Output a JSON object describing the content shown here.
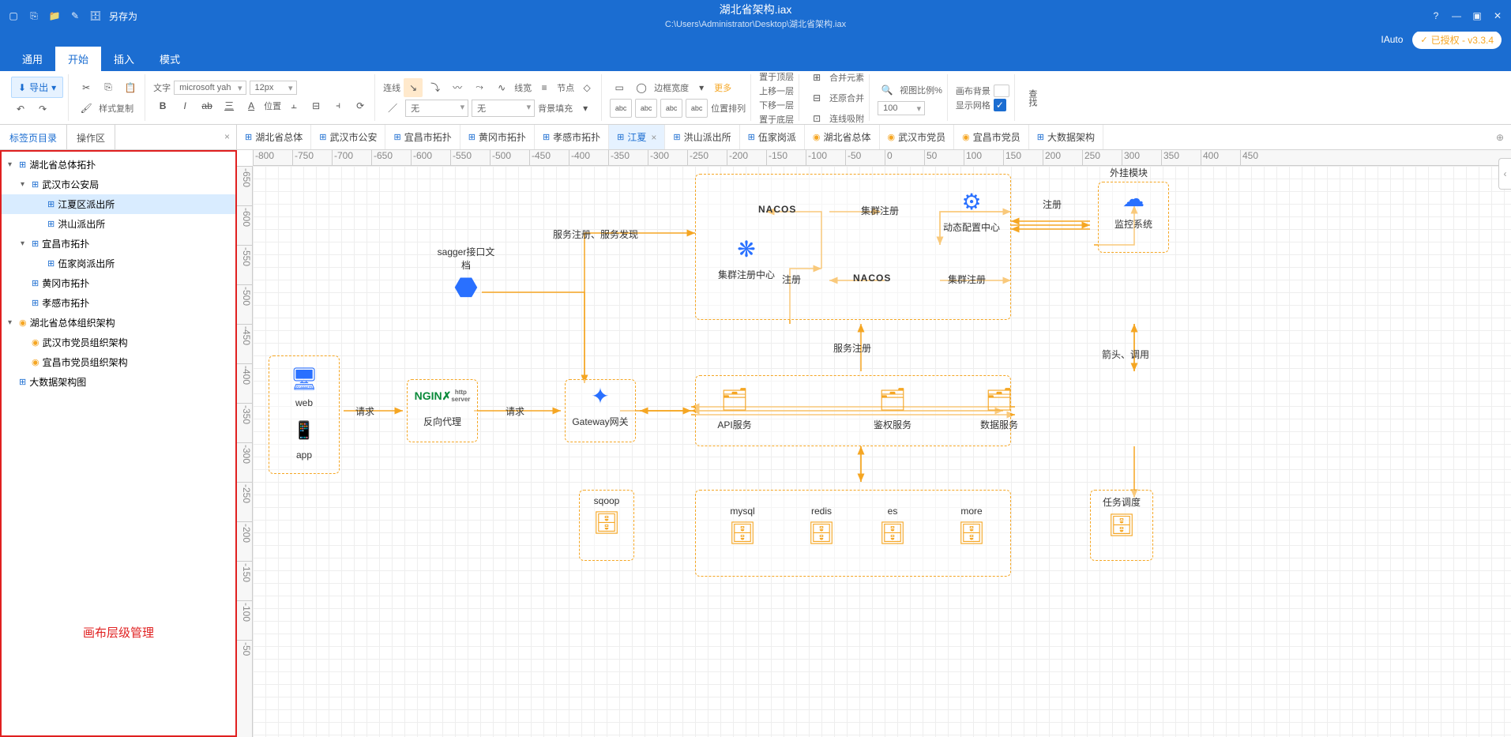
{
  "titlebar": {
    "saveAs": "另存为",
    "filename": "湖北省架构.iax",
    "filepath": "C:\\Users\\Administrator\\Desktop\\湖北省架构.iax",
    "brand": "IAuto",
    "license": "已授权 - v3.3.4"
  },
  "menu": {
    "items": [
      "通用",
      "开始",
      "插入",
      "模式"
    ],
    "activeIndex": 1
  },
  "ribbon": {
    "export": "导出",
    "styleCopy": "样式复制",
    "fontLabel": "文字",
    "fontFamily": "microsoft yah",
    "fontSize": "12px",
    "position": "位置",
    "lineLabel": "连线",
    "lineStyleLabel": "线宽",
    "nodeLabel": "节点",
    "fill1": "无",
    "fill2": "无",
    "bgFill": "背景填充",
    "borderWidth": "边框宽度",
    "more": "更多",
    "alignTop": "置于顶层",
    "moveUp": "上移一层",
    "moveDown": "下移一层",
    "posArrange": "位置排列",
    "alignBottom": "置于底层",
    "merge": "合并元素",
    "restore": "还原合并",
    "snapLine": "连线吸附",
    "viewScale": "视图比例%",
    "zoom": "100",
    "canvasBg": "画布背景",
    "showGrid": "显示网格",
    "find": "查找"
  },
  "leftTabs": {
    "toc": "标签页目录",
    "workarea": "操作区"
  },
  "docTabs": [
    {
      "icon": "topo",
      "label": "湖北省总体"
    },
    {
      "icon": "topo",
      "label": "武汉市公安"
    },
    {
      "icon": "topo",
      "label": "宜昌市拓扑"
    },
    {
      "icon": "topo",
      "label": "黄冈市拓扑"
    },
    {
      "icon": "topo",
      "label": "孝感市拓扑"
    },
    {
      "icon": "topo",
      "label": "江夏",
      "active": true,
      "closable": true
    },
    {
      "icon": "topo",
      "label": "洪山派出所"
    },
    {
      "icon": "topo",
      "label": "伍家岗派"
    },
    {
      "icon": "org",
      "label": "湖北省总体"
    },
    {
      "icon": "org",
      "label": "武汉市党员"
    },
    {
      "icon": "org",
      "label": "宜昌市党员"
    },
    {
      "icon": "topo",
      "label": "大数据架构"
    }
  ],
  "tree": [
    {
      "l": 0,
      "caret": "▾",
      "icon": "topo",
      "label": "湖北省总体拓扑"
    },
    {
      "l": 1,
      "caret": "▾",
      "icon": "topo",
      "label": "武汉市公安局"
    },
    {
      "l": 2,
      "icon": "topo",
      "label": "江夏区派出所",
      "selected": true
    },
    {
      "l": 2,
      "icon": "topo",
      "label": "洪山派出所"
    },
    {
      "l": 1,
      "caret": "▾",
      "icon": "topo",
      "label": "宜昌市拓扑"
    },
    {
      "l": 2,
      "icon": "topo",
      "label": "伍家岗派出所"
    },
    {
      "l": 1,
      "icon": "topo",
      "label": "黄冈市拓扑"
    },
    {
      "l": 1,
      "icon": "topo",
      "label": "孝感市拓扑"
    },
    {
      "l": 0,
      "caret": "▾",
      "icon": "org",
      "label": "湖北省总体组织架构"
    },
    {
      "l": 1,
      "icon": "org",
      "label": "武汉市党员组织架构"
    },
    {
      "l": 1,
      "icon": "org",
      "label": "宜昌市党员组织架构"
    },
    {
      "l": 0,
      "icon": "topo",
      "label": "大数据架构图"
    }
  ],
  "sidebarOverlay": "画布层级管理",
  "rulerH": [
    "-800",
    "-750",
    "-700",
    "-650",
    "-600",
    "-550",
    "-500",
    "-450",
    "-400",
    "-350",
    "-300",
    "-250",
    "-200",
    "-150",
    "-100",
    "-50",
    "0",
    "50",
    "100",
    "150",
    "200",
    "250",
    "300",
    "350",
    "400",
    "450"
  ],
  "rulerV": [
    "-650",
    "-600",
    "-550",
    "-500",
    "-450",
    "-400",
    "-350",
    "-300",
    "-250",
    "-200",
    "-150",
    "-100",
    "-50"
  ],
  "diagram": {
    "colors": {
      "dash": "#f5a623",
      "arrow": "#f5a623",
      "text": "#333",
      "iconBlue": "#2970ff",
      "iconOrange": "#f5a623"
    },
    "labels": {
      "sagger": "sagger接口文档",
      "serviceRegDisc": "服务注册、服务发现",
      "nacos1": "NACOS",
      "clusterReg1": "集群注册",
      "dynConfig": "动态配置中心",
      "register": "注册",
      "regCenter": "集群注册中心",
      "reg2": "注册",
      "nacos2": "NACOS",
      "clusterReg2": "集群注册",
      "plugin": "外挂模块",
      "monitor": "监控系统",
      "web": "web",
      "app": "app",
      "req1": "请求",
      "nginx": "反向代理",
      "req2": "请求",
      "gateway": "Gateway网关",
      "serviceReg": "服务注册",
      "arrowCall": "箭头、调用",
      "api": "API服务",
      "auth": "鉴权服务",
      "dataService": "数据服务",
      "sqoop": "sqoop",
      "mysql": "mysql",
      "redis": "redis",
      "es": "es",
      "more": "more",
      "schedule": "任务调度"
    }
  }
}
